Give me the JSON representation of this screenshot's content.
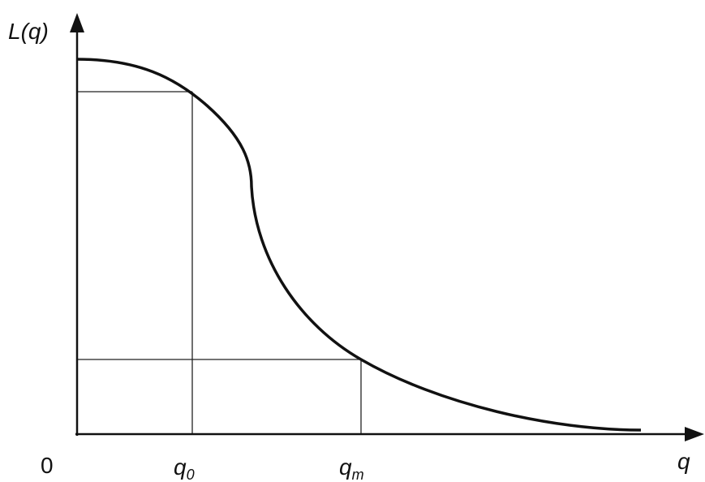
{
  "axes": {
    "y_label": "L(q)",
    "x_label": "q",
    "origin": "0"
  },
  "markers": [
    {
      "base": "q",
      "subscript": "0"
    },
    {
      "base": "q",
      "subscript": "m"
    }
  ]
}
